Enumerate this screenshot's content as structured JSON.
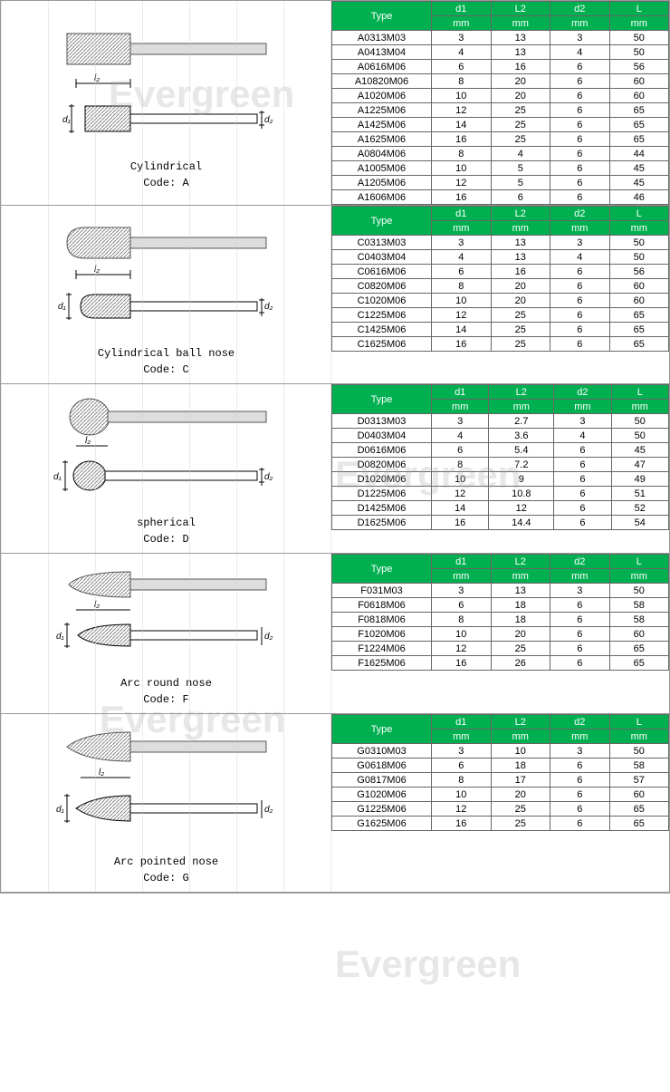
{
  "colors": {
    "header_bg": "#00b050",
    "header_text": "#ffffff",
    "cell_bg": "#ffffff",
    "border": "#666666"
  },
  "column_headers": {
    "type": "Type",
    "d1": "d1",
    "l2": "L2",
    "d2": "d2",
    "l": "L",
    "unit": "mm"
  },
  "watermark_text": "Evergreen",
  "sections": [
    {
      "shape_name": "Cylindrical",
      "code_line": "Code: A",
      "rows": [
        [
          "A0313M03",
          "3",
          "13",
          "3",
          "50"
        ],
        [
          "A0413M04",
          "4",
          "13",
          "4",
          "50"
        ],
        [
          "A0616M06",
          "6",
          "16",
          "6",
          "56"
        ],
        [
          "A10820M06",
          "8",
          "20",
          "6",
          "60"
        ],
        [
          "A1020M06",
          "10",
          "20",
          "6",
          "60"
        ],
        [
          "A1225M06",
          "12",
          "25",
          "6",
          "65"
        ],
        [
          "A1425M06",
          "14",
          "25",
          "6",
          "65"
        ],
        [
          "A1625M06",
          "16",
          "25",
          "6",
          "65"
        ],
        [
          "A0804M06",
          "8",
          "4",
          "6",
          "44"
        ],
        [
          "A1005M06",
          "10",
          "5",
          "6",
          "45"
        ],
        [
          "A1205M06",
          "12",
          "5",
          "6",
          "45"
        ],
        [
          "A1606M06",
          "16",
          "6",
          "6",
          "46"
        ]
      ]
    },
    {
      "shape_name": "Cylindrical ball nose",
      "code_line": "Code: C",
      "rows": [
        [
          "C0313M03",
          "3",
          "13",
          "3",
          "50"
        ],
        [
          "C0403M04",
          "4",
          "13",
          "4",
          "50"
        ],
        [
          "C0616M06",
          "6",
          "16",
          "6",
          "56"
        ],
        [
          "C0820M06",
          "8",
          "20",
          "6",
          "60"
        ],
        [
          "C1020M06",
          "10",
          "20",
          "6",
          "60"
        ],
        [
          "C1225M06",
          "12",
          "25",
          "6",
          "65"
        ],
        [
          "C1425M06",
          "14",
          "25",
          "6",
          "65"
        ],
        [
          "C1625M06",
          "16",
          "25",
          "6",
          "65"
        ]
      ]
    },
    {
      "shape_name": "spherical",
      "code_line": "Code: D",
      "rows": [
        [
          "D0313M03",
          "3",
          "2.7",
          "3",
          "50"
        ],
        [
          "D0403M04",
          "4",
          "3.6",
          "4",
          "50"
        ],
        [
          "D0616M06",
          "6",
          "5.4",
          "6",
          "45"
        ],
        [
          "D0820M06",
          "8",
          "7.2",
          "6",
          "47"
        ],
        [
          "D1020M06",
          "10",
          "9",
          "6",
          "49"
        ],
        [
          "D1225M06",
          "12",
          "10.8",
          "6",
          "51"
        ],
        [
          "D1425M06",
          "14",
          "12",
          "6",
          "52"
        ],
        [
          "D1625M06",
          "16",
          "14.4",
          "6",
          "54"
        ]
      ]
    },
    {
      "shape_name": "Arc round nose",
      "code_line": "Code: F",
      "rows": [
        [
          "F031M03",
          "3",
          "13",
          "3",
          "50"
        ],
        [
          "F0618M06",
          "6",
          "18",
          "6",
          "58"
        ],
        [
          "F0818M06",
          "8",
          "18",
          "6",
          "58"
        ],
        [
          "F1020M06",
          "10",
          "20",
          "6",
          "60"
        ],
        [
          "F1224M06",
          "12",
          "25",
          "6",
          "65"
        ],
        [
          "F1625M06",
          "16",
          "26",
          "6",
          "65"
        ]
      ]
    },
    {
      "shape_name": "Arc pointed nose",
      "code_line": "Code: G",
      "rows": [
        [
          "G0310M03",
          "3",
          "10",
          "3",
          "50"
        ],
        [
          "G0618M06",
          "6",
          "18",
          "6",
          "58"
        ],
        [
          "G0817M06",
          "8",
          "17",
          "6",
          "57"
        ],
        [
          "G1020M06",
          "10",
          "20",
          "6",
          "60"
        ],
        [
          "G1225M06",
          "12",
          "25",
          "6",
          "65"
        ],
        [
          "G1625M06",
          "16",
          "25",
          "6",
          "65"
        ]
      ]
    }
  ]
}
